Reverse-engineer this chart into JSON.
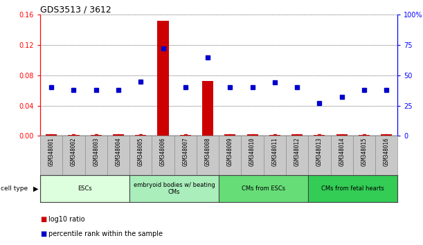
{
  "title": "GDS3513 / 3612",
  "samples": [
    "GSM348001",
    "GSM348002",
    "GSM348003",
    "GSM348004",
    "GSM348005",
    "GSM348006",
    "GSM348007",
    "GSM348008",
    "GSM348009",
    "GSM348010",
    "GSM348011",
    "GSM348012",
    "GSM348013",
    "GSM348014",
    "GSM348015",
    "GSM348016"
  ],
  "log10_ratio": [
    0.002,
    0.001,
    0.001,
    0.002,
    0.001,
    0.152,
    0.001,
    0.073,
    0.002,
    0.002,
    0.001,
    0.002,
    0.001,
    0.002,
    0.001,
    0.002
  ],
  "percentile_rank": [
    40,
    38,
    38,
    38,
    45,
    72,
    40,
    65,
    40,
    40,
    44,
    40,
    27,
    32,
    38,
    38
  ],
  "cell_types": [
    {
      "label": "ESCs",
      "start": 0,
      "end": 4,
      "color": "#ddffdd"
    },
    {
      "label": "embryoid bodies w/ beating\nCMs",
      "start": 4,
      "end": 8,
      "color": "#aaeebb"
    },
    {
      "label": "CMs from ESCs",
      "start": 8,
      "end": 12,
      "color": "#66dd77"
    },
    {
      "label": "CMs from fetal hearts",
      "start": 12,
      "end": 16,
      "color": "#33cc55"
    }
  ],
  "ylim_left": [
    0,
    0.16
  ],
  "ylim_right": [
    0,
    100
  ],
  "yticks_left": [
    0,
    0.04,
    0.08,
    0.12,
    0.16
  ],
  "yticks_right": [
    0,
    25,
    50,
    75,
    100
  ],
  "bar_color": "#cc0000",
  "dot_color": "#0000cc",
  "background_color": "#ffffff",
  "grid_color": "#000000",
  "sample_label_bg": "#c8c8c8"
}
